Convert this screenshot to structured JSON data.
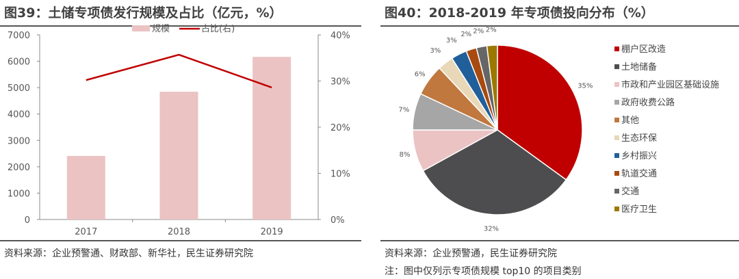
{
  "chart_data": [
    {
      "type": "bar+line",
      "title": "图39：土储专项债发行规模及占比（亿元，%）",
      "categories": [
        "2017",
        "2018",
        "2019"
      ],
      "series": [
        {
          "name": "规模",
          "type": "bar",
          "axis": "left",
          "values": [
            2410,
            4845,
            6166
          ],
          "color": "#EBC3C3"
        },
        {
          "name": "占比(右)",
          "type": "line",
          "axis": "right",
          "values": [
            30.2,
            35.7,
            28.6
          ],
          "color": "#C00000"
        }
      ],
      "ylim": [
        0,
        7000
      ],
      "yticks": [
        "0",
        "1000",
        "2000",
        "3000",
        "4000",
        "5000",
        "6000",
        "7000"
      ],
      "y2lim": [
        0,
        40
      ],
      "y2ticks": [
        "0%",
        "10%",
        "20%",
        "30%",
        "40%"
      ],
      "legend": "top",
      "grid": false,
      "source": "资料来源：企业预警通、财政部、新华社，民生证券研究院"
    },
    {
      "type": "pie",
      "title": "图40：2018-2019 年专项债投向分布（%）",
      "labels": [
        "棚户区改造",
        "土地储备",
        "市政和产业园区基础设施",
        "政府收费公路",
        "其他",
        "生态环保",
        "乡村振兴",
        "轨道交通",
        "交通",
        "医疗卫生"
      ],
      "values": [
        35,
        32,
        8,
        7,
        6,
        3,
        3,
        2,
        2,
        2
      ],
      "value_labels": [
        "35%",
        "32%",
        "8%",
        "7%",
        "6%",
        "3%",
        "3%",
        "2%",
        "2%",
        "2%"
      ],
      "colors": [
        "#C00000",
        "#4D4D4F",
        "#EBC3C3",
        "#A6A6A6",
        "#C0783E",
        "#E8D8B8",
        "#215F9A",
        "#A84A10",
        "#666666",
        "#9C7800"
      ],
      "legend": "right",
      "source": "资料来源：企业预警通，民生证券研究院",
      "note": "注：图中仅列示专项债规模 top10 的项目类别"
    }
  ]
}
